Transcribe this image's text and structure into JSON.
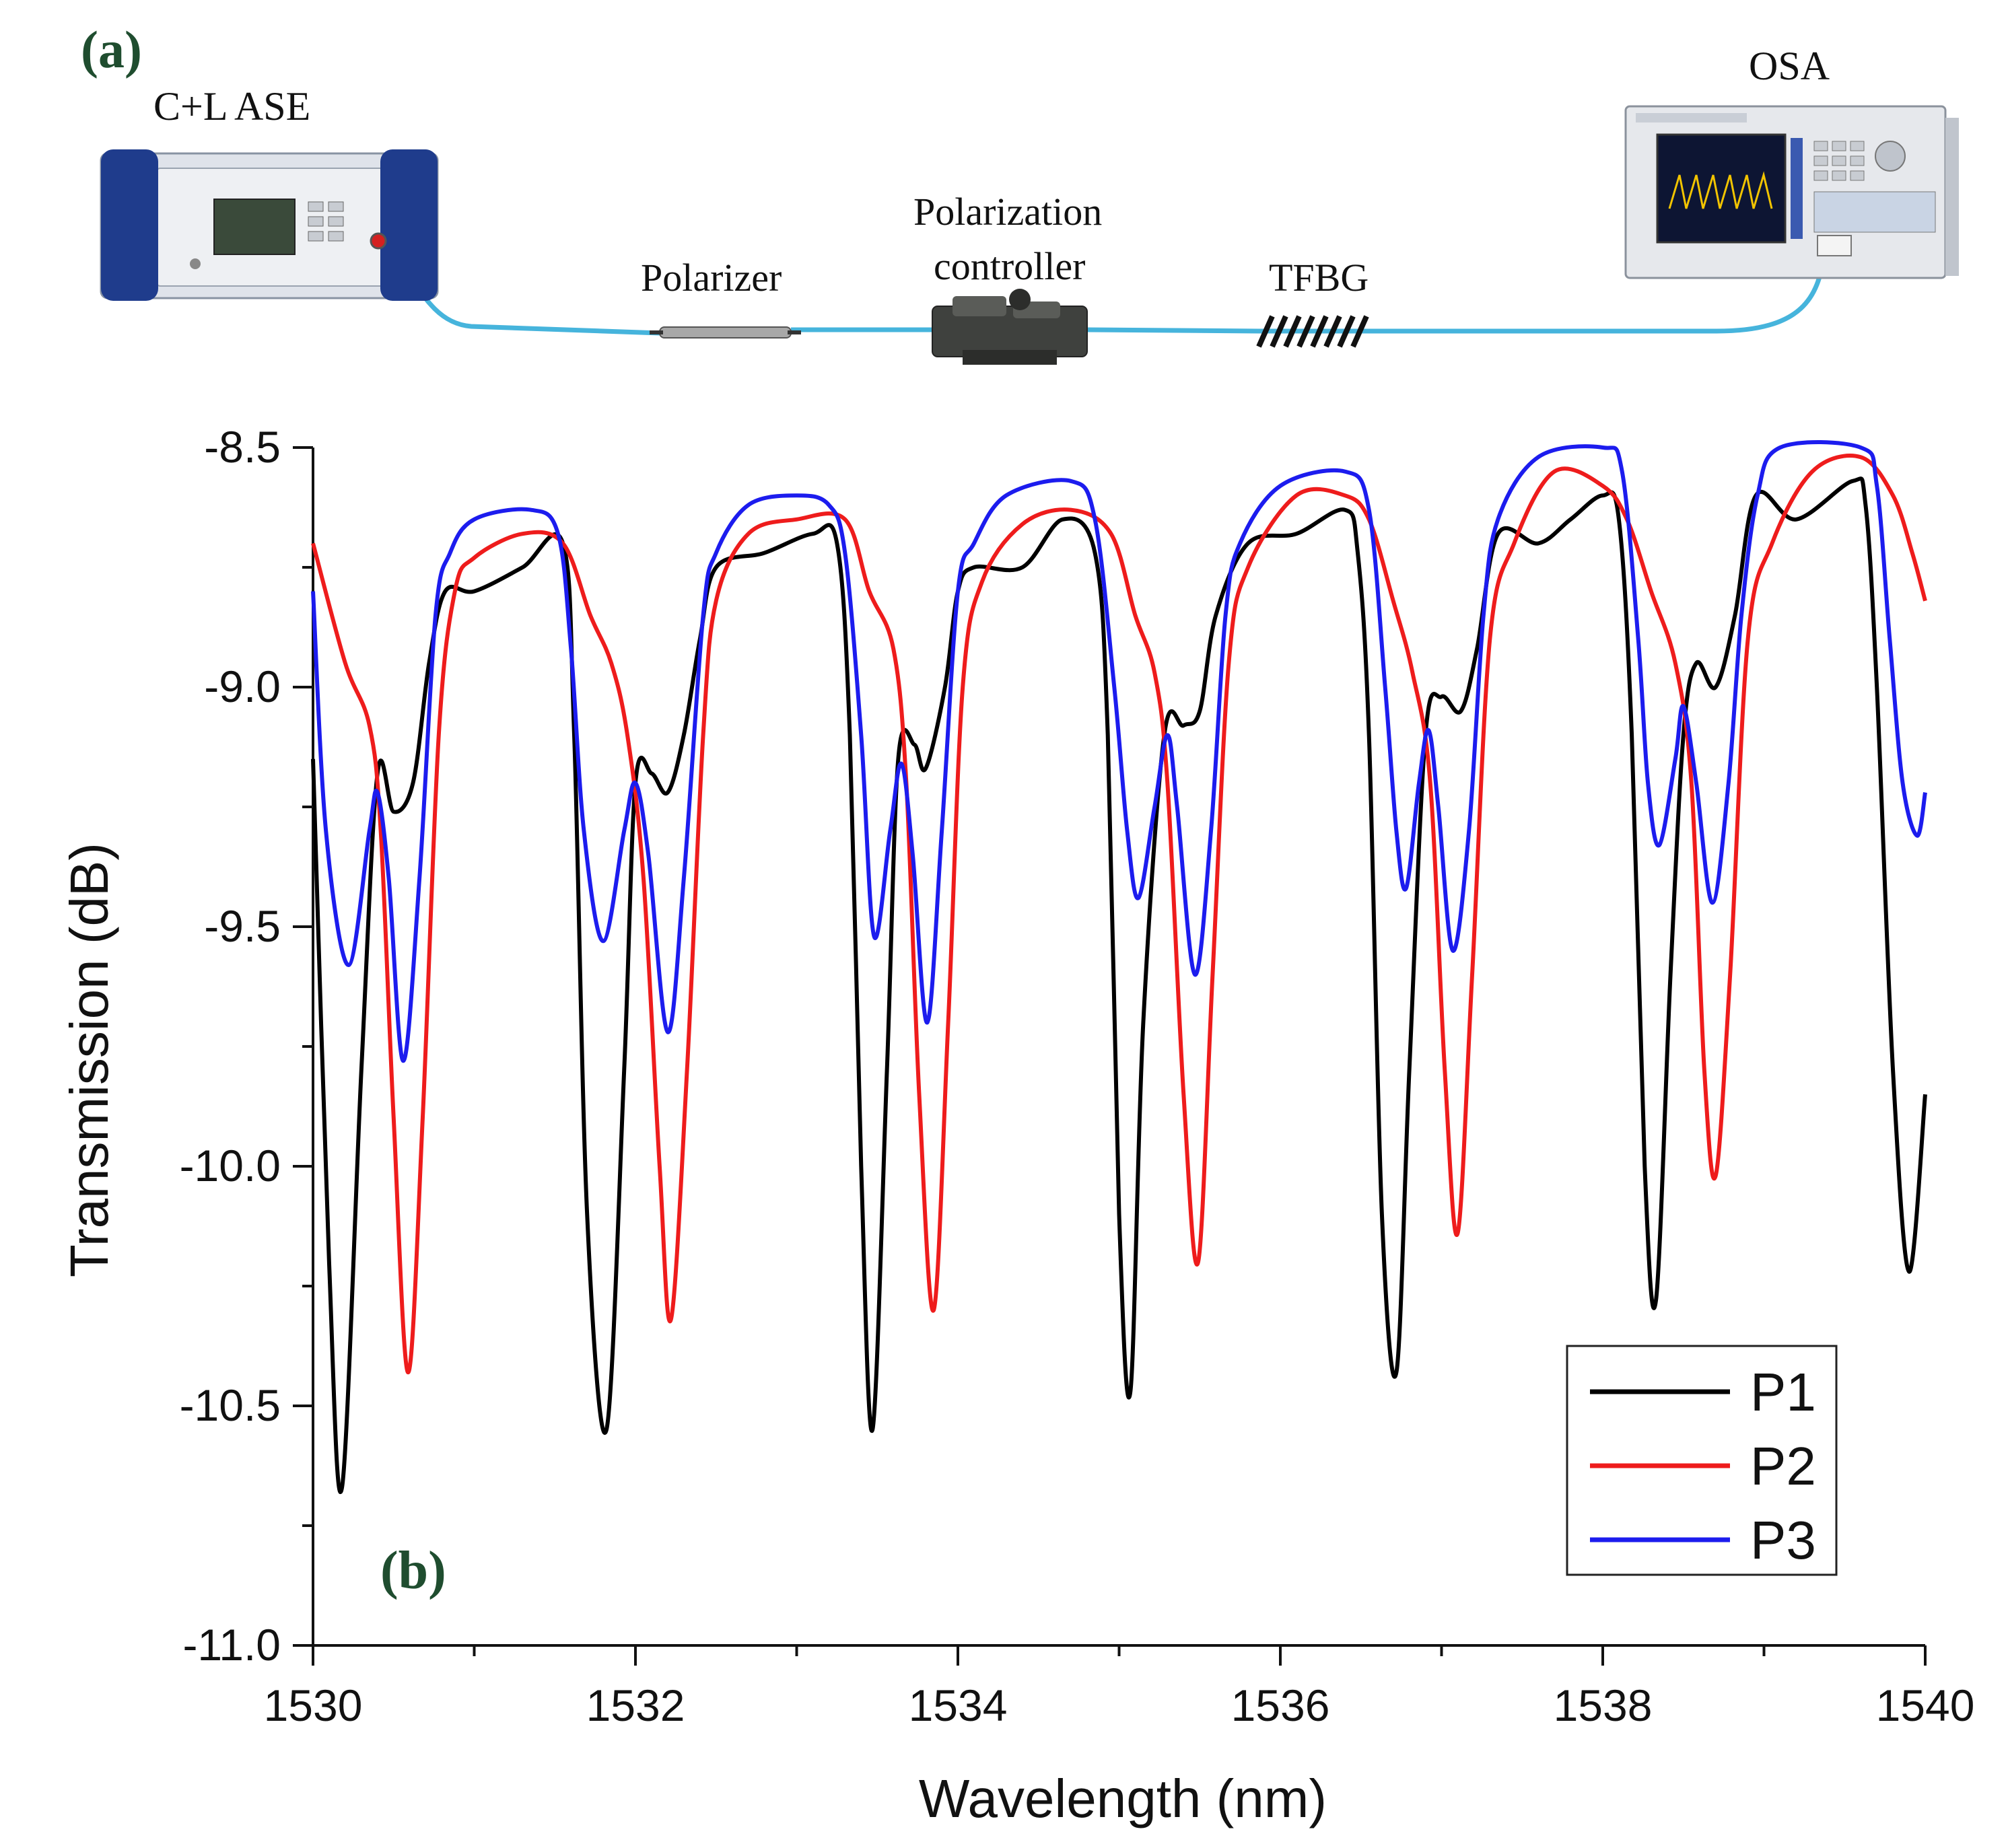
{
  "panel_a": {
    "label": "(a)",
    "source_label": "C+L  ASE",
    "osa_label": "OSA",
    "polarizer_label": "Polarizer",
    "controller_label_line1": "Polarization",
    "controller_label_line2": "controller",
    "tfbg_label": "TFBG",
    "colors": {
      "fiber": "#46b4dc",
      "panel_label": "#1f4d2f",
      "device_blue": "#1f3c8c"
    }
  },
  "panel_b": {
    "label": "(b)"
  },
  "chart_data": {
    "type": "line",
    "xlabel": "Wavelength (nm)",
    "ylabel": "Transmission (dB)",
    "xlim": [
      1530,
      1540
    ],
    "ylim": [
      -11.0,
      -8.5
    ],
    "xticks": [
      1530,
      1532,
      1534,
      1536,
      1538,
      1540
    ],
    "xtick_labels": [
      "1530",
      "1532",
      "1534",
      "1536",
      "1538",
      "1540"
    ],
    "yticks": [
      -8.5,
      -9.0,
      -9.5,
      -10.0,
      -10.5,
      -11.0
    ],
    "ytick_labels": [
      "-8.5",
      "-9.0",
      "-9.5",
      "-10.0",
      "-10.5",
      "-11.0"
    ],
    "grid": false,
    "legend_position": "bottom-right",
    "series": [
      {
        "name": "P1",
        "color": "#000000",
        "points": [
          [
            1530,
            -9.15
          ],
          [
            1530.1,
            -10.2
          ],
          [
            1530.18,
            -10.67
          ],
          [
            1530.3,
            -9.8
          ],
          [
            1530.4,
            -9.18
          ],
          [
            1530.5,
            -9.26
          ],
          [
            1530.62,
            -9.2
          ],
          [
            1530.72,
            -8.95
          ],
          [
            1530.82,
            -8.8
          ],
          [
            1531.0,
            -8.8
          ],
          [
            1531.3,
            -8.75
          ],
          [
            1531.55,
            -8.7
          ],
          [
            1531.62,
            -9.1
          ],
          [
            1531.7,
            -10.1
          ],
          [
            1531.82,
            -10.55
          ],
          [
            1531.93,
            -9.8
          ],
          [
            1532.0,
            -9.2
          ],
          [
            1532.1,
            -9.18
          ],
          [
            1532.2,
            -9.22
          ],
          [
            1532.3,
            -9.1
          ],
          [
            1532.4,
            -8.9
          ],
          [
            1532.5,
            -8.75
          ],
          [
            1532.8,
            -8.72
          ],
          [
            1533.1,
            -8.68
          ],
          [
            1533.25,
            -8.7
          ],
          [
            1533.33,
            -9.1
          ],
          [
            1533.4,
            -10.0
          ],
          [
            1533.47,
            -10.55
          ],
          [
            1533.56,
            -9.8
          ],
          [
            1533.63,
            -9.15
          ],
          [
            1533.73,
            -9.12
          ],
          [
            1533.8,
            -9.17
          ],
          [
            1533.92,
            -9.0
          ],
          [
            1534.0,
            -8.8
          ],
          [
            1534.1,
            -8.75
          ],
          [
            1534.4,
            -8.75
          ],
          [
            1534.65,
            -8.65
          ],
          [
            1534.85,
            -8.72
          ],
          [
            1534.93,
            -9.1
          ],
          [
            1535.0,
            -10.1
          ],
          [
            1535.07,
            -10.47
          ],
          [
            1535.15,
            -9.7
          ],
          [
            1535.28,
            -9.1
          ],
          [
            1535.4,
            -9.08
          ],
          [
            1535.5,
            -9.05
          ],
          [
            1535.6,
            -8.85
          ],
          [
            1535.8,
            -8.7
          ],
          [
            1536.1,
            -8.68
          ],
          [
            1536.4,
            -8.63
          ],
          [
            1536.48,
            -8.72
          ],
          [
            1536.55,
            -9.1
          ],
          [
            1536.63,
            -10.1
          ],
          [
            1536.72,
            -10.43
          ],
          [
            1536.8,
            -9.8
          ],
          [
            1536.9,
            -9.1
          ],
          [
            1537.0,
            -9.02
          ],
          [
            1537.12,
            -9.05
          ],
          [
            1537.22,
            -8.92
          ],
          [
            1537.35,
            -8.68
          ],
          [
            1537.6,
            -8.7
          ],
          [
            1537.8,
            -8.65
          ],
          [
            1538.0,
            -8.6
          ],
          [
            1538.1,
            -8.65
          ],
          [
            1538.18,
            -9.1
          ],
          [
            1538.26,
            -10.0
          ],
          [
            1538.33,
            -10.28
          ],
          [
            1538.42,
            -9.6
          ],
          [
            1538.5,
            -9.1
          ],
          [
            1538.58,
            -8.95
          ],
          [
            1538.7,
            -9.0
          ],
          [
            1538.82,
            -8.85
          ],
          [
            1538.95,
            -8.6
          ],
          [
            1539.2,
            -8.65
          ],
          [
            1539.55,
            -8.57
          ],
          [
            1539.63,
            -8.62
          ],
          [
            1539.7,
            -9.0
          ],
          [
            1539.8,
            -9.8
          ],
          [
            1539.9,
            -10.22
          ],
          [
            1540,
            -9.85
          ]
        ]
      },
      {
        "name": "P2",
        "color": "#ee1c1c",
        "points": [
          [
            1530,
            -8.7
          ],
          [
            1530.2,
            -8.95
          ],
          [
            1530.35,
            -9.08
          ],
          [
            1530.42,
            -9.3
          ],
          [
            1530.5,
            -9.9
          ],
          [
            1530.59,
            -10.43
          ],
          [
            1530.68,
            -9.9
          ],
          [
            1530.78,
            -9.1
          ],
          [
            1530.88,
            -8.8
          ],
          [
            1531.0,
            -8.73
          ],
          [
            1531.3,
            -8.68
          ],
          [
            1531.55,
            -8.7
          ],
          [
            1531.72,
            -8.85
          ],
          [
            1531.85,
            -8.95
          ],
          [
            1531.95,
            -9.1
          ],
          [
            1532.05,
            -9.4
          ],
          [
            1532.15,
            -10.0
          ],
          [
            1532.22,
            -10.32
          ],
          [
            1532.32,
            -9.8
          ],
          [
            1532.42,
            -9.1
          ],
          [
            1532.5,
            -8.82
          ],
          [
            1532.7,
            -8.68
          ],
          [
            1533.0,
            -8.65
          ],
          [
            1533.3,
            -8.65
          ],
          [
            1533.45,
            -8.8
          ],
          [
            1533.6,
            -8.92
          ],
          [
            1533.68,
            -9.2
          ],
          [
            1533.76,
            -9.85
          ],
          [
            1533.85,
            -10.3
          ],
          [
            1533.94,
            -9.7
          ],
          [
            1534.03,
            -9.0
          ],
          [
            1534.15,
            -8.78
          ],
          [
            1534.4,
            -8.66
          ],
          [
            1534.7,
            -8.63
          ],
          [
            1534.95,
            -8.68
          ],
          [
            1535.1,
            -8.85
          ],
          [
            1535.22,
            -8.97
          ],
          [
            1535.3,
            -9.2
          ],
          [
            1535.4,
            -9.85
          ],
          [
            1535.49,
            -10.2
          ],
          [
            1535.58,
            -9.6
          ],
          [
            1535.68,
            -8.95
          ],
          [
            1535.8,
            -8.75
          ],
          [
            1536.1,
            -8.6
          ],
          [
            1536.4,
            -8.6
          ],
          [
            1536.55,
            -8.65
          ],
          [
            1536.7,
            -8.82
          ],
          [
            1536.82,
            -8.97
          ],
          [
            1536.93,
            -9.2
          ],
          [
            1537.02,
            -9.8
          ],
          [
            1537.1,
            -10.14
          ],
          [
            1537.19,
            -9.6
          ],
          [
            1537.3,
            -8.9
          ],
          [
            1537.45,
            -8.7
          ],
          [
            1537.7,
            -8.55
          ],
          [
            1538.0,
            -8.58
          ],
          [
            1538.15,
            -8.65
          ],
          [
            1538.3,
            -8.8
          ],
          [
            1538.45,
            -8.95
          ],
          [
            1538.55,
            -9.2
          ],
          [
            1538.63,
            -9.8
          ],
          [
            1538.7,
            -10.02
          ],
          [
            1538.79,
            -9.6
          ],
          [
            1538.9,
            -8.9
          ],
          [
            1539.05,
            -8.7
          ],
          [
            1539.3,
            -8.55
          ],
          [
            1539.6,
            -8.52
          ],
          [
            1539.8,
            -8.6
          ],
          [
            1539.92,
            -8.72
          ],
          [
            1540,
            -8.82
          ]
        ]
      },
      {
        "name": "P3",
        "color": "#1c1cee",
        "points": [
          [
            1530,
            -8.8
          ],
          [
            1530.08,
            -9.3
          ],
          [
            1530.22,
            -9.58
          ],
          [
            1530.35,
            -9.3
          ],
          [
            1530.4,
            -9.22
          ],
          [
            1530.47,
            -9.4
          ],
          [
            1530.56,
            -9.78
          ],
          [
            1530.66,
            -9.4
          ],
          [
            1530.76,
            -8.85
          ],
          [
            1530.85,
            -8.72
          ],
          [
            1531.0,
            -8.65
          ],
          [
            1531.35,
            -8.63
          ],
          [
            1531.52,
            -8.68
          ],
          [
            1531.6,
            -8.92
          ],
          [
            1531.68,
            -9.3
          ],
          [
            1531.8,
            -9.53
          ],
          [
            1531.93,
            -9.3
          ],
          [
            1532.0,
            -9.2
          ],
          [
            1532.08,
            -9.35
          ],
          [
            1532.2,
            -9.72
          ],
          [
            1532.3,
            -9.4
          ],
          [
            1532.42,
            -8.85
          ],
          [
            1532.5,
            -8.72
          ],
          [
            1532.7,
            -8.62
          ],
          [
            1533.0,
            -8.6
          ],
          [
            1533.2,
            -8.62
          ],
          [
            1533.3,
            -8.72
          ],
          [
            1533.4,
            -9.1
          ],
          [
            1533.48,
            -9.52
          ],
          [
            1533.58,
            -9.3
          ],
          [
            1533.65,
            -9.16
          ],
          [
            1533.72,
            -9.35
          ],
          [
            1533.81,
            -9.7
          ],
          [
            1533.9,
            -9.3
          ],
          [
            1534.0,
            -8.8
          ],
          [
            1534.1,
            -8.7
          ],
          [
            1534.3,
            -8.6
          ],
          [
            1534.7,
            -8.57
          ],
          [
            1534.85,
            -8.65
          ],
          [
            1534.97,
            -9.0
          ],
          [
            1535.05,
            -9.3
          ],
          [
            1535.12,
            -9.44
          ],
          [
            1535.22,
            -9.25
          ],
          [
            1535.3,
            -9.1
          ],
          [
            1535.36,
            -9.25
          ],
          [
            1535.47,
            -9.6
          ],
          [
            1535.57,
            -9.3
          ],
          [
            1535.66,
            -8.85
          ],
          [
            1535.75,
            -8.7
          ],
          [
            1536.0,
            -8.58
          ],
          [
            1536.4,
            -8.55
          ],
          [
            1536.55,
            -8.63
          ],
          [
            1536.65,
            -9.0
          ],
          [
            1536.72,
            -9.3
          ],
          [
            1536.78,
            -9.42
          ],
          [
            1536.86,
            -9.2
          ],
          [
            1536.92,
            -9.09
          ],
          [
            1536.98,
            -9.25
          ],
          [
            1537.07,
            -9.55
          ],
          [
            1537.17,
            -9.3
          ],
          [
            1537.26,
            -8.85
          ],
          [
            1537.35,
            -8.65
          ],
          [
            1537.6,
            -8.52
          ],
          [
            1538.0,
            -8.5
          ],
          [
            1538.12,
            -8.55
          ],
          [
            1538.22,
            -8.9
          ],
          [
            1538.28,
            -9.2
          ],
          [
            1538.35,
            -9.33
          ],
          [
            1538.45,
            -9.15
          ],
          [
            1538.5,
            -9.04
          ],
          [
            1538.58,
            -9.2
          ],
          [
            1538.68,
            -9.45
          ],
          [
            1538.78,
            -9.2
          ],
          [
            1538.86,
            -8.85
          ],
          [
            1538.96,
            -8.6
          ],
          [
            1539.1,
            -8.5
          ],
          [
            1539.6,
            -8.5
          ],
          [
            1539.7,
            -8.58
          ],
          [
            1539.78,
            -8.9
          ],
          [
            1539.86,
            -9.2
          ],
          [
            1539.95,
            -9.31
          ],
          [
            1540,
            -9.22
          ]
        ]
      }
    ]
  }
}
